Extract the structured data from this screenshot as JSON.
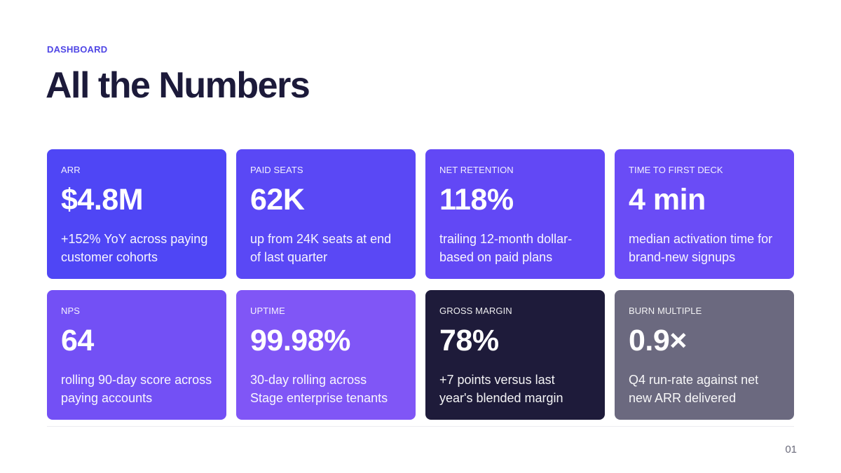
{
  "header": {
    "eyebrow": "DASHBOARD",
    "title": "All the Numbers"
  },
  "cards": [
    {
      "label": "ARR",
      "value": "$4.8M",
      "desc": "+152% YoY across paying customer cohorts",
      "color": "#4f46f5"
    },
    {
      "label": "PAID SEATS",
      "value": "62K",
      "desc": "up from 24K seats at end of last quarter",
      "color": "#5a48f5"
    },
    {
      "label": "NET RETENTION",
      "value": "118%",
      "desc": "trailing 12-month dollar-based on paid plans",
      "color": "#6248f5"
    },
    {
      "label": "TIME TO FIRST DECK",
      "value": "4 min",
      "desc": "median activation time for brand-new signups",
      "color": "#6a4cf6"
    },
    {
      "label": "NPS",
      "value": "64",
      "desc": "rolling 90-day score across paying accounts",
      "color": "#7350f5"
    },
    {
      "label": "UPTIME",
      "value": "99.98%",
      "desc": "30-day rolling across Stage enterprise tenants",
      "color": "#8056f6"
    },
    {
      "label": "GROSS MARGIN",
      "value": "78%",
      "desc": "+7 points versus last year's blended margin",
      "color": "#1e1b3a"
    },
    {
      "label": "BURN MULTIPLE",
      "value": "0.9×",
      "desc": "Q4 run-rate against net new ARR delivered",
      "color": "#6b697f"
    }
  ],
  "footer": {
    "page_number": "01"
  }
}
